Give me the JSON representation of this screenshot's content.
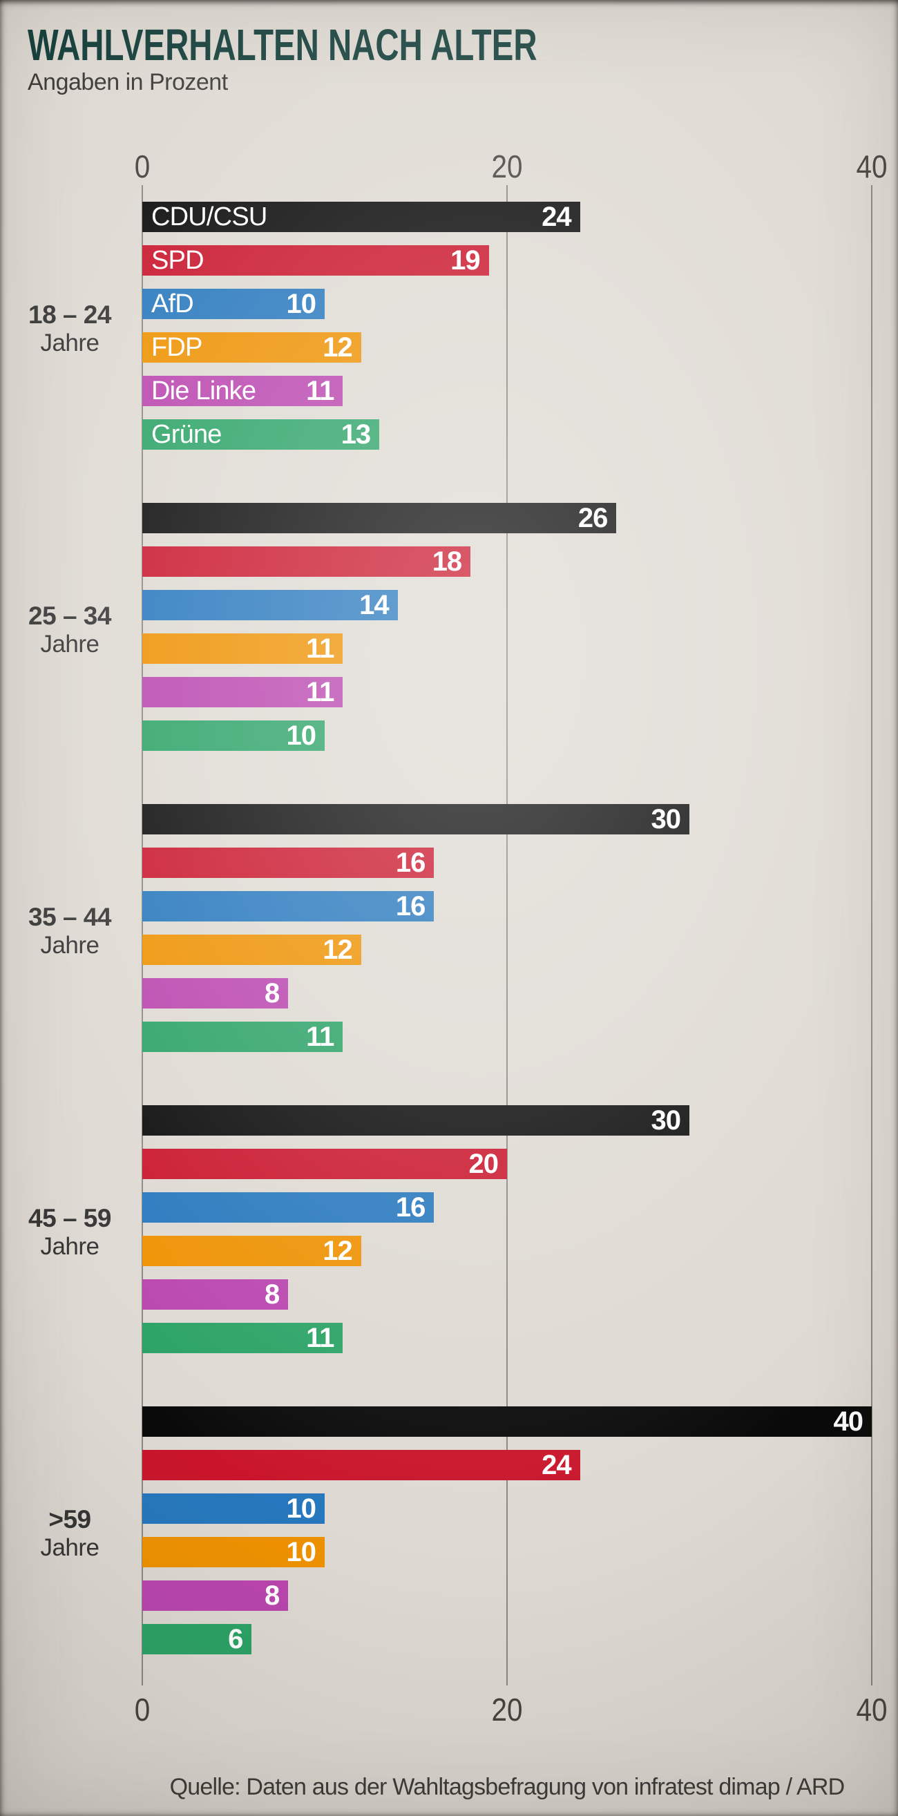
{
  "header": {
    "title": "WAHLVERHALTEN NACH ALTER",
    "subtitle": "Angaben in Prozent"
  },
  "source": "Quelle: Daten aus der Wahltagsbefragung von infratest dimap / ARD",
  "axis": {
    "ticks": [
      "0",
      "20",
      "40"
    ],
    "max": 40
  },
  "age_groups": [
    {
      "range": "18 – 24",
      "unit": "Jahre"
    },
    {
      "range": "25 – 34",
      "unit": "Jahre"
    },
    {
      "range": "35 – 44",
      "unit": "Jahre"
    },
    {
      "range": "45 – 59",
      "unit": "Jahre"
    },
    {
      "range": ">59",
      "unit": "Jahre"
    }
  ],
  "colors": {
    "title_text": "#16403c",
    "background": "#ded9d2",
    "gridline": "#8a8681",
    "axis_text": "#45413d",
    "age_label_text": "#343434",
    "bar_text": "#ffffff"
  },
  "chart_data": {
    "type": "bar",
    "orientation": "horizontal",
    "title": "WAHLVERHALTEN NACH ALTER",
    "subtitle": "Angaben in Prozent",
    "xlabel": "",
    "ylabel": "",
    "xlim": [
      0,
      40
    ],
    "x_ticks": [
      0,
      20,
      40
    ],
    "grid": "vertical gridlines at 0, 20 and 40, drawn behind bars, ticks above and below chart",
    "legend_position": "party names printed inside the bars of the first age group only",
    "value_labels": "white bold numbers inside right end of each bar",
    "categories": [
      "18 – 24 Jahre",
      "25 – 34 Jahre",
      "35 – 44 Jahre",
      "45 – 59 Jahre",
      ">59 Jahre"
    ],
    "series": [
      {
        "name": "CDU/CSU",
        "color": "#0a0a0a",
        "values": [
          24,
          26,
          30,
          30,
          40
        ]
      },
      {
        "name": "SPD",
        "color": "#c9152b",
        "values": [
          19,
          18,
          16,
          20,
          24
        ]
      },
      {
        "name": "AfD",
        "color": "#2677bd",
        "values": [
          10,
          14,
          16,
          16,
          10
        ]
      },
      {
        "name": "FDP",
        "color": "#ee9100",
        "values": [
          12,
          11,
          12,
          12,
          10
        ]
      },
      {
        "name": "Die Linke",
        "color": "#b944ae",
        "values": [
          11,
          11,
          8,
          8,
          8
        ]
      },
      {
        "name": "Grüne",
        "color": "#2aa265",
        "values": [
          13,
          10,
          11,
          11,
          6
        ]
      }
    ]
  }
}
